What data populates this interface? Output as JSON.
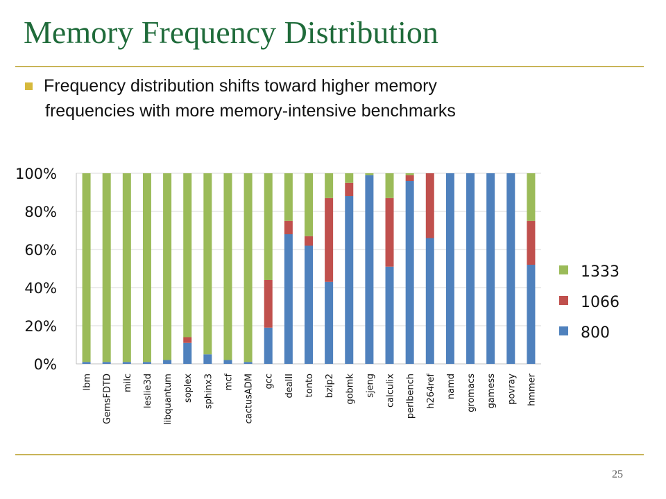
{
  "slide": {
    "title": "Memory Frequency Distribution",
    "bullet_line1": "Frequency distribution shifts toward higher memory",
    "bullet_line2": "frequencies with more memory-intensive benchmarks",
    "page_number": "25"
  },
  "colors": {
    "title": "#1f6b3a",
    "rule": "#c9b458",
    "bullet": "#d6b93c"
  },
  "chart_data": {
    "type": "bar",
    "stacked": true,
    "percent": true,
    "categories": [
      "lbm",
      "GemsFDTD",
      "milc",
      "leslie3d",
      "libquantum",
      "soplex",
      "sphinx3",
      "mcf",
      "cactusADM",
      "gcc",
      "dealII",
      "tonto",
      "bzip2",
      "gobmk",
      "sjeng",
      "calculix",
      "perlbench",
      "h264ref",
      "namd",
      "gromacs",
      "gamess",
      "povray",
      "hmmer"
    ],
    "series": [
      {
        "name": "800",
        "color": "#4f81bd",
        "values": [
          1,
          1,
          1,
          1,
          2,
          11,
          5,
          2,
          1,
          19,
          68,
          62,
          43,
          88,
          99,
          51,
          96,
          66,
          100,
          100,
          100,
          100,
          52
        ]
      },
      {
        "name": "1066",
        "color": "#c0504d",
        "values": [
          0,
          0,
          0,
          0,
          0,
          3,
          0,
          0,
          0,
          25,
          7,
          5,
          44,
          7,
          0,
          36,
          3,
          34,
          0,
          0,
          0,
          0,
          23
        ]
      },
      {
        "name": "1333",
        "color": "#9bbb59",
        "values": [
          99,
          99,
          99,
          99,
          98,
          86,
          95,
          98,
          99,
          56,
          25,
          33,
          13,
          5,
          1,
          13,
          1,
          0,
          0,
          0,
          0,
          0,
          25
        ]
      }
    ],
    "yticks": [
      "0%",
      "20%",
      "40%",
      "60%",
      "80%",
      "100%"
    ],
    "ylim": [
      0,
      100
    ],
    "grid": true,
    "legend": "right",
    "legend_order": [
      "1333",
      "1066",
      "800"
    ]
  }
}
